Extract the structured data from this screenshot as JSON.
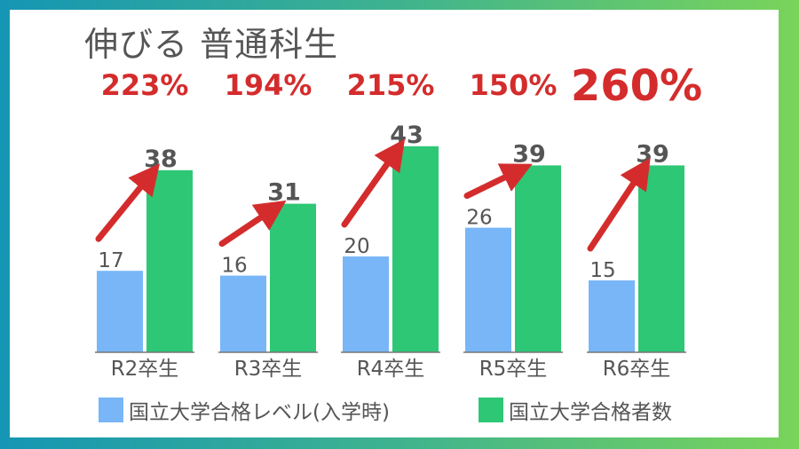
{
  "colors": {
    "level": "#78b6f8",
    "passed": "#2ec775",
    "arrow": "#d42c2c",
    "text": "#555555",
    "baseline": "#777777"
  },
  "chart_data": {
    "type": "bar",
    "title": "伸びる 普通科生",
    "categories": [
      "R2卒生",
      "R3卒生",
      "R4卒生",
      "R5卒生",
      "R6卒生"
    ],
    "series": [
      {
        "name": "国立大学合格レベル(入学時)",
        "values": [
          17,
          16,
          20,
          26,
          15
        ]
      },
      {
        "name": "国立大学合格者数",
        "values": [
          38,
          31,
          43,
          39,
          39
        ]
      }
    ],
    "growth_labels": [
      "223%",
      "194%",
      "215%",
      "150%",
      "260%"
    ],
    "highlight_index": 4,
    "ylim": [
      0,
      45
    ],
    "legend": "bottom",
    "grid": false
  }
}
